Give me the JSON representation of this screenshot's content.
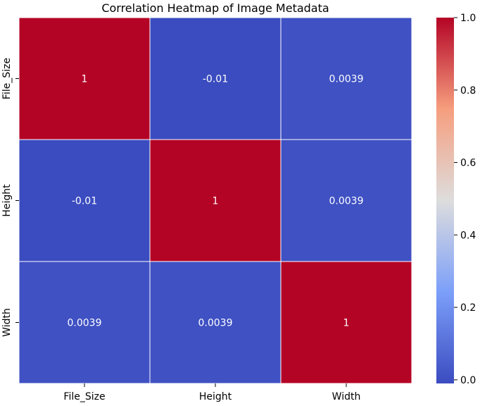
{
  "chart_data": {
    "type": "heatmap",
    "title": "Correlation Heatmap of Image Metadata",
    "xlabel": "",
    "ylabel": "",
    "x_categories": [
      "File_Size",
      "Height",
      "Width"
    ],
    "y_categories": [
      "File_Size",
      "Height",
      "Width"
    ],
    "values": [
      [
        1,
        -0.01,
        0.0039
      ],
      [
        -0.01,
        1,
        0.0039
      ],
      [
        0.0039,
        0.0039,
        1
      ]
    ],
    "annotations": [
      [
        "1",
        "-0.01",
        "0.0039"
      ],
      [
        "-0.01",
        "1",
        "0.0039"
      ],
      [
        "0.0039",
        "0.0039",
        "1"
      ]
    ],
    "colormap": "coolwarm",
    "color_low": "#3b4cc0",
    "color_high": "#b40426",
    "annotation_color": "#ffffff",
    "colorbar": {
      "range": [
        -0.01,
        1.0
      ],
      "ticks": [
        0.0,
        0.2,
        0.4,
        0.6,
        0.8,
        1.0
      ],
      "tick_labels": [
        "0.0",
        "0.2",
        "0.4",
        "0.6",
        "0.8",
        "1.0"
      ]
    },
    "grid": true
  }
}
